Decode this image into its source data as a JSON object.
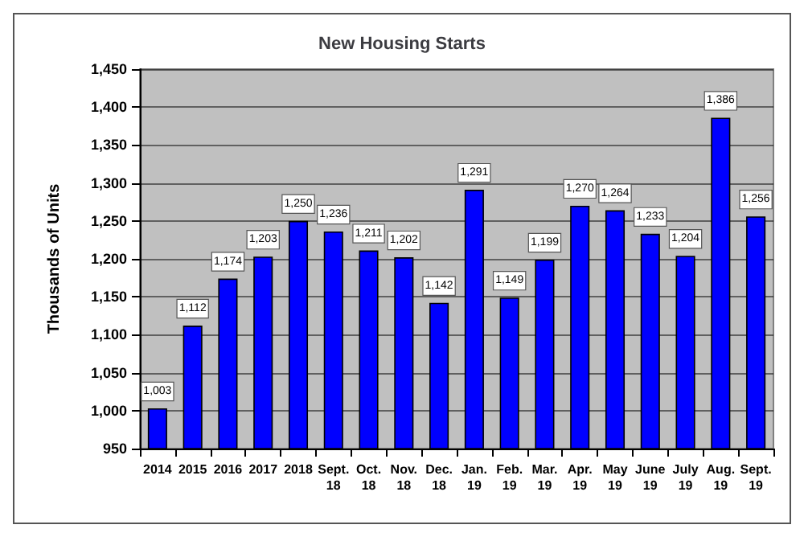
{
  "chart_data": {
    "type": "bar",
    "title": "New Housing Starts",
    "ylabel": "Thousands of Units",
    "categories": [
      "2014",
      "2015",
      "2016",
      "2017",
      "2018",
      "Sept.\n18",
      "Oct.\n18",
      "Nov.\n18",
      "Dec.\n18",
      "Jan.\n19",
      "Feb.\n19",
      "Mar.\n19",
      "Apr.\n19",
      "May\n19",
      "June\n19",
      "July\n19",
      "Aug.\n19",
      "Sept.\n19"
    ],
    "values": [
      1003,
      1112,
      1174,
      1203,
      1250,
      1236,
      1211,
      1202,
      1142,
      1291,
      1149,
      1199,
      1270,
      1264,
      1233,
      1204,
      1386,
      1256
    ],
    "value_labels": [
      "1,003",
      "1,112",
      "1,174",
      "1,203",
      "1,250",
      "1,236",
      "1,211",
      "1,202",
      "1,142",
      "1,291",
      "1,149",
      "1,199",
      "1,270",
      "1,264",
      "1,233",
      "1,204",
      "1,386",
      "1,256"
    ],
    "color": "#0000ff",
    "grid": "y",
    "ylim": [
      950,
      1450
    ],
    "yticks": [
      {
        "value": 950,
        "label": "950"
      },
      {
        "value": 1000,
        "label": "1,000"
      },
      {
        "value": 1050,
        "label": "1,050"
      },
      {
        "value": 1100,
        "label": "1,100"
      },
      {
        "value": 1150,
        "label": "1,150"
      },
      {
        "value": 1200,
        "label": "1,200"
      },
      {
        "value": 1250,
        "label": "1,250"
      },
      {
        "value": 1300,
        "label": "1,300"
      },
      {
        "value": 1350,
        "label": "1,350"
      },
      {
        "value": 1400,
        "label": "1,400"
      },
      {
        "value": 1450,
        "label": "1,450"
      }
    ]
  }
}
